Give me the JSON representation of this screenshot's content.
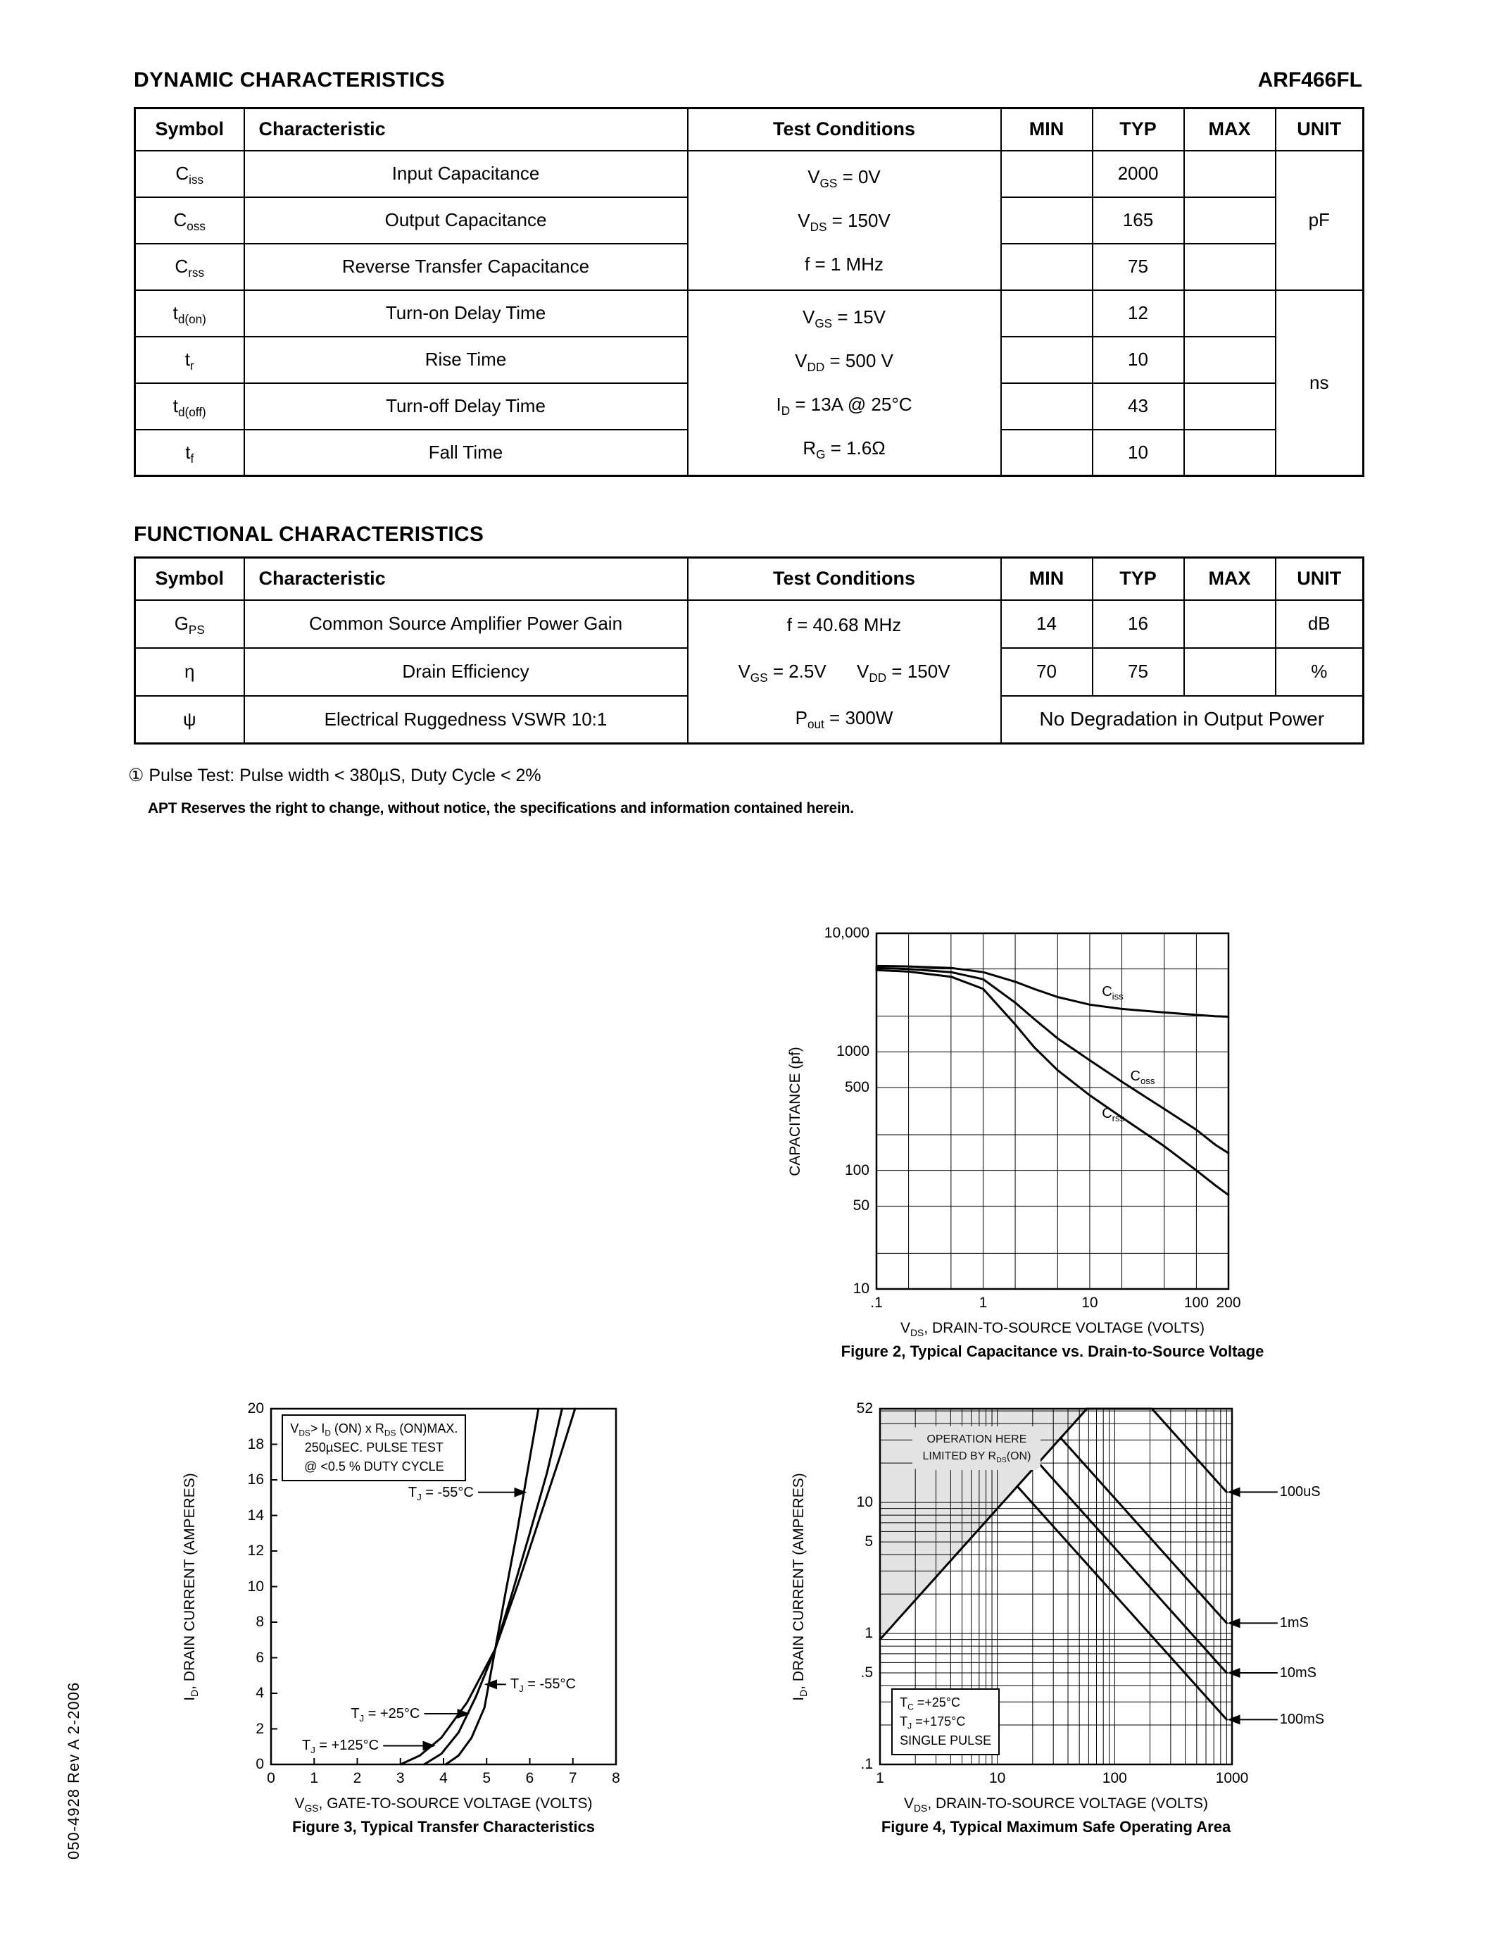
{
  "page": {
    "part_number": "ARF466FL",
    "doc_number": "050-4928   Rev   A    2-2006"
  },
  "sections": {
    "dynamic_title": "DYNAMIC CHARACTERISTICS",
    "functional_title": "FUNCTIONAL CHARACTERISTICS"
  },
  "table_headers": {
    "symbol": "Symbol",
    "characteristic": "Characteristic",
    "test_conditions": "Test Conditions",
    "min": "MIN",
    "typ": "TYP",
    "max": "MAX",
    "unit": "UNIT"
  },
  "dynamic_table": {
    "test_conditions_groups": [
      {
        "lines": [
          "V~GS~ = 0V",
          "V~DS~ = 150V",
          "f = 1 MHz"
        ]
      },
      {
        "lines": [
          "V~GS~ = 15V",
          "V~DD~ = 500 V",
          "I~D~ = 13A @ 25°C",
          "R~G~ = 1.6Ω"
        ]
      }
    ],
    "units": [
      {
        "label": "pF"
      },
      {
        "label": "ns"
      }
    ],
    "rows": [
      {
        "symbol": "C~iss~",
        "characteristic": "Input Capacitance",
        "min": "",
        "typ": "2000",
        "max": ""
      },
      {
        "symbol": "C~oss~",
        "characteristic": "Output Capacitance",
        "min": "",
        "typ": "165",
        "max": ""
      },
      {
        "symbol": "C~rss~",
        "characteristic": "Reverse Transfer Capacitance",
        "min": "",
        "typ": "75",
        "max": ""
      },
      {
        "symbol": "t~d(on)~",
        "characteristic": "Turn-on Delay Time",
        "min": "",
        "typ": "12",
        "max": ""
      },
      {
        "symbol": "t~r~",
        "characteristic": "Rise Time",
        "min": "",
        "typ": "10",
        "max": ""
      },
      {
        "symbol": "t~d(off)~",
        "characteristic": "Turn-off Delay Time",
        "min": "",
        "typ": "43",
        "max": ""
      },
      {
        "symbol": "t~f~",
        "characteristic": "Fall Time",
        "min": "",
        "typ": "10",
        "max": ""
      }
    ]
  },
  "functional_table": {
    "test_conditions_lines": [
      "f = 40.68 MHz",
      "V~GS~ = 2.5V      V~DD~ = 150V",
      "P~out~ = 300W"
    ],
    "rows": [
      {
        "symbol": "G~PS~",
        "characteristic": "Common Source Amplifier Power Gain",
        "min": "14",
        "typ": "16",
        "max": "",
        "unit": "dB"
      },
      {
        "symbol": "η",
        "characteristic": "Drain Efficiency",
        "min": "70",
        "typ": "75",
        "max": "",
        "unit": "%"
      },
      {
        "symbol": "ψ",
        "characteristic": "Electrical Ruggedness VSWR 10:1",
        "merged": "No Degradation in Output Power"
      }
    ]
  },
  "notes": {
    "pulse_note": "① Pulse Test: Pulse width < 380µS, Duty Cycle < 2%",
    "disclaimer": "APT Reserves the right to change, without notice, the specifications and information contained herein."
  },
  "chart_data": [
    {
      "id": "fig2",
      "type": "line",
      "caption": "Figure 2, Typical Capacitance vs. Drain-to-Source Voltage",
      "xlabel": "V~DS~, DRAIN-TO-SOURCE VOLTAGE (VOLTS)",
      "ylabel": "CAPACITANCE (pf)",
      "xscale": "log",
      "yscale": "log",
      "xlim": [
        0.1,
        200
      ],
      "ylim": [
        10,
        10000
      ],
      "xgrid": [
        0.1,
        0.2,
        0.5,
        1,
        2,
        5,
        10,
        20,
        50,
        100,
        200
      ],
      "ygrid": [
        10,
        20,
        50,
        100,
        200,
        500,
        1000,
        2000,
        5000,
        10000
      ],
      "xticks": [
        {
          "v": 0.1,
          "label": ".1"
        },
        {
          "v": 1,
          "label": "1"
        },
        {
          "v": 10,
          "label": "10"
        },
        {
          "v": 100,
          "label": "100"
        },
        {
          "v": 200,
          "label": "200"
        }
      ],
      "yticks": [
        {
          "v": 10000,
          "label": "10,000"
        },
        {
          "v": 1000,
          "label": "1000"
        },
        {
          "v": 500,
          "label": "500"
        },
        {
          "v": 100,
          "label": "100"
        },
        {
          "v": 50,
          "label": "50"
        },
        {
          "v": 10,
          "label": "10"
        }
      ],
      "series": [
        {
          "name": "Ciss",
          "points": [
            [
              0.1,
              5300
            ],
            [
              0.2,
              5250
            ],
            [
              0.5,
              5100
            ],
            [
              1,
              4700
            ],
            [
              2,
              3900
            ],
            [
              3,
              3400
            ],
            [
              5,
              2900
            ],
            [
              10,
              2500
            ],
            [
              20,
              2300
            ],
            [
              50,
              2150
            ],
            [
              100,
              2050
            ],
            [
              150,
              2000
            ],
            [
              200,
              1980
            ]
          ]
        },
        {
          "name": "Coss",
          "points": [
            [
              0.1,
              5100
            ],
            [
              0.2,
              5000
            ],
            [
              0.5,
              4700
            ],
            [
              1,
              4100
            ],
            [
              2,
              2600
            ],
            [
              3,
              1900
            ],
            [
              5,
              1300
            ],
            [
              10,
              850
            ],
            [
              20,
              560
            ],
            [
              50,
              330
            ],
            [
              100,
              220
            ],
            [
              150,
              165
            ],
            [
              200,
              140
            ]
          ]
        },
        {
          "name": "Crss",
          "points": [
            [
              0.1,
              4900
            ],
            [
              0.2,
              4750
            ],
            [
              0.5,
              4300
            ],
            [
              1,
              3400
            ],
            [
              2,
              1700
            ],
            [
              3,
              1100
            ],
            [
              5,
              700
            ],
            [
              10,
              430
            ],
            [
              20,
              280
            ],
            [
              50,
              160
            ],
            [
              100,
              100
            ],
            [
              150,
              75
            ],
            [
              200,
              62
            ]
          ]
        }
      ],
      "annotations": [
        {
          "text": "C~iss~",
          "x": 13,
          "y": 3200,
          "anchor": "start"
        },
        {
          "text": "C~oss~",
          "x": 24,
          "y": 620,
          "anchor": "start"
        },
        {
          "text": "C~rss~",
          "x": 13,
          "y": 300,
          "anchor": "start"
        }
      ]
    },
    {
      "id": "fig3",
      "type": "line",
      "caption": "Figure 3, Typical Transfer Characteristics",
      "xlabel": "V~GS~, GATE-TO-SOURCE VOLTAGE (VOLTS)",
      "ylabel": "I~D~, DRAIN CURRENT (AMPERES)",
      "xscale": "linear",
      "yscale": "linear",
      "xlim": [
        0,
        8
      ],
      "ylim": [
        0,
        20
      ],
      "tick_marks": true,
      "xticks": [
        {
          "v": 0,
          "label": "0"
        },
        {
          "v": 1,
          "label": "1"
        },
        {
          "v": 2,
          "label": "2"
        },
        {
          "v": 3,
          "label": "3"
        },
        {
          "v": 4,
          "label": "4"
        },
        {
          "v": 5,
          "label": "5"
        },
        {
          "v": 6,
          "label": "6"
        },
        {
          "v": 7,
          "label": "7"
        },
        {
          "v": 8,
          "label": "8"
        }
      ],
      "yticks": [
        {
          "v": 0,
          "label": "0"
        },
        {
          "v": 2,
          "label": "2"
        },
        {
          "v": 4,
          "label": "4"
        },
        {
          "v": 6,
          "label": "6"
        },
        {
          "v": 8,
          "label": "8"
        },
        {
          "v": 10,
          "label": "10"
        },
        {
          "v": 12,
          "label": "12"
        },
        {
          "v": 14,
          "label": "14"
        },
        {
          "v": 16,
          "label": "16"
        },
        {
          "v": 18,
          "label": "18"
        },
        {
          "v": 20,
          "label": "20"
        }
      ],
      "series": [
        {
          "name": "TJ = -55°C",
          "points": [
            [
              4.05,
              0
            ],
            [
              4.35,
              0.5
            ],
            [
              4.65,
              1.5
            ],
            [
              4.95,
              3.2
            ],
            [
              5.2,
              6.5
            ],
            [
              5.45,
              9.8
            ],
            [
              5.7,
              13
            ],
            [
              5.95,
              16.5
            ],
            [
              6.2,
              20
            ]
          ]
        },
        {
          "name": "TJ = +25°C",
          "points": [
            [
              3.55,
              0
            ],
            [
              3.95,
              0.6
            ],
            [
              4.35,
              1.8
            ],
            [
              4.75,
              3.8
            ],
            [
              5.2,
              6.5
            ],
            [
              5.6,
              9.7
            ],
            [
              6.0,
              13
            ],
            [
              6.4,
              16.4
            ],
            [
              6.75,
              20
            ]
          ]
        },
        {
          "name": "TJ = +125°C",
          "points": [
            [
              3.0,
              0
            ],
            [
              3.45,
              0.5
            ],
            [
              3.95,
              1.5
            ],
            [
              4.55,
              3.5
            ],
            [
              5.2,
              6.5
            ],
            [
              5.75,
              10.3
            ],
            [
              6.25,
              14
            ],
            [
              6.7,
              17.3
            ],
            [
              7.05,
              20
            ]
          ]
        }
      ],
      "annotations": [
        {
          "lines": [
            "V~DS~> I~D~ (ON) x  R~DS~ (ON)MAX.",
            "250µSEC. PULSE TEST",
            "@ <0.5 % DUTY CYCLE"
          ],
          "x": 0.25,
          "y": 19.7,
          "anchor": "start",
          "valign": "top",
          "box": true,
          "align": "center"
        },
        {
          "text": "T~J~ = -55°C",
          "x": 4.7,
          "y": 15.3,
          "anchor": "end",
          "arrow": {
            "from": [
              4.8,
              15.3
            ],
            "to": [
              5.9,
              15.3
            ]
          }
        },
        {
          "text": "T~J~ = -55°C",
          "x": 5.55,
          "y": 4.5,
          "anchor": "start",
          "arrow": {
            "from": [
              5.45,
              4.5
            ],
            "to": [
              4.98,
              4.5
            ]
          }
        },
        {
          "text": "T~J~ = +25°C",
          "x": 3.45,
          "y": 2.85,
          "anchor": "end",
          "arrow": {
            "from": [
              3.55,
              2.85
            ],
            "to": [
              4.58,
              2.85
            ]
          }
        },
        {
          "text": "T~J~ = +125°C",
          "x": 2.5,
          "y": 1.05,
          "anchor": "end",
          "arrow": {
            "from": [
              2.6,
              1.05
            ],
            "to": [
              3.78,
              1.05
            ]
          }
        }
      ]
    },
    {
      "id": "fig4",
      "type": "line",
      "caption": "Figure 4, Typical Maximum Safe Operating Area",
      "xlabel": "V~DS~, DRAIN-TO-SOURCE VOLTAGE (VOLTS)",
      "ylabel": "I~D~, DRAIN CURRENT (AMPERES)",
      "xscale": "log",
      "yscale": "log",
      "xlim": [
        1,
        1000
      ],
      "ylim": [
        0.1,
        52
      ],
      "xgrid": [
        1,
        2,
        3,
        4,
        5,
        6,
        7,
        8,
        9,
        10,
        20,
        30,
        40,
        50,
        60,
        70,
        80,
        90,
        100,
        200,
        300,
        400,
        500,
        600,
        700,
        800,
        900,
        1000
      ],
      "ygrid": [
        0.1,
        0.2,
        0.3,
        0.4,
        0.5,
        0.6,
        0.7,
        0.8,
        0.9,
        1,
        2,
        3,
        4,
        5,
        6,
        7,
        8,
        9,
        10,
        20,
        30,
        40,
        50
      ],
      "xticks": [
        {
          "v": 1,
          "label": "1"
        },
        {
          "v": 10,
          "label": "10"
        },
        {
          "v": 100,
          "label": "100"
        },
        {
          "v": 1000,
          "label": "1000"
        }
      ],
      "yticks": [
        {
          "v": 52,
          "label": "52"
        },
        {
          "v": 10,
          "label": "10"
        },
        {
          "v": 5,
          "label": "5"
        },
        {
          "v": 1,
          "label": "1"
        },
        {
          "v": 0.5,
          "label": ".5"
        },
        {
          "v": 0.1,
          "label": ".1"
        }
      ],
      "region": {
        "name": "rds-on-limited-region",
        "points": [
          [
            1,
            0.9
          ],
          [
            58,
            52
          ],
          [
            1,
            52
          ]
        ],
        "color": "#e4e4e4"
      },
      "series": [
        {
          "name": "RDS(on) limit",
          "points": [
            [
              1,
              0.9
            ],
            [
              58,
              52
            ]
          ]
        },
        {
          "name": "100uS",
          "points": [
            [
              58,
              52
            ],
            [
              208,
              52
            ],
            [
              900,
              12
            ]
          ]
        },
        {
          "name": "1mS",
          "points": [
            [
              34.6,
              31.2
            ],
            [
              900,
              1.2
            ]
          ]
        },
        {
          "name": "10mS",
          "points": [
            [
              22.4,
              20.1
            ],
            [
              900,
              0.5
            ]
          ]
        },
        {
          "name": "100mS",
          "points": [
            [
              14.8,
              13.3
            ],
            [
              900,
              0.22
            ]
          ]
        }
      ],
      "annotations": [
        {
          "lines": [
            "OPERATION HERE",
            "LIMITED BY R~DS~(ON)"
          ],
          "x": 1.9,
          "y": 26,
          "anchor": "start",
          "box": true,
          "boxstyle": "gray"
        },
        {
          "lines": [
            "T~C~ =+25°C",
            "T~J~ =+175°C",
            "SINGLE PULSE"
          ],
          "x": 1.25,
          "y": 0.38,
          "anchor": "start",
          "valign": "top",
          "box": true
        },
        {
          "text": "100uS",
          "x": 2550,
          "y": 12,
          "anchor": "start",
          "arrow": {
            "from": [
              2450,
              12
            ],
            "to": [
              940,
              12
            ]
          }
        },
        {
          "text": "1mS",
          "x": 2550,
          "y": 1.2,
          "anchor": "start",
          "arrow": {
            "from": [
              2450,
              1.2
            ],
            "to": [
              940,
              1.2
            ]
          }
        },
        {
          "text": "10mS",
          "x": 2550,
          "y": 0.5,
          "anchor": "start",
          "arrow": {
            "from": [
              2450,
              0.5
            ],
            "to": [
              940,
              0.5
            ]
          }
        },
        {
          "text": "100mS",
          "x": 2550,
          "y": 0.22,
          "anchor": "start",
          "arrow": {
            "from": [
              2450,
              0.22
            ],
            "to": [
              940,
              0.22
            ]
          }
        }
      ]
    }
  ]
}
